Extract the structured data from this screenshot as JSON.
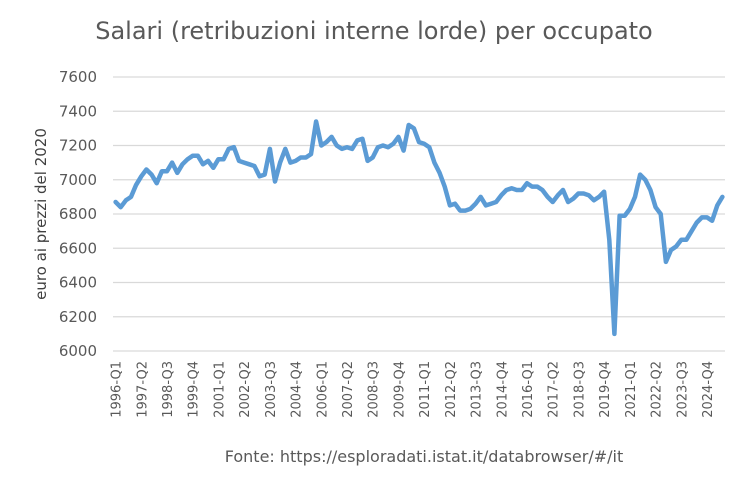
{
  "chart_data": {
    "type": "line",
    "title": "Salari (retribuzioni interne lorde) per occupato",
    "xlabel": "",
    "ylabel": "euro ai prezzi del 2020",
    "ylim": [
      6000,
      7600
    ],
    "yticks": [
      6000,
      6200,
      6400,
      6600,
      6800,
      7000,
      7200,
      7400,
      7600
    ],
    "grid": true,
    "legend": "none",
    "x_tick_labels": [
      "1996-Q1",
      "1997-Q2",
      "1998-Q3",
      "1999-Q4",
      "2001-Q1",
      "2002-Q2",
      "2003-Q3",
      "2004-Q4",
      "2006-Q1",
      "2007-Q2",
      "2008-Q3",
      "2009-Q4",
      "2011-Q1",
      "2012-Q2",
      "2013-Q3",
      "2014-Q4",
      "2016-Q1",
      "2017-Q2",
      "2018-Q3",
      "2019-Q4",
      "2021-Q1",
      "2022-Q2",
      "2023-Q3",
      "2024-Q4"
    ],
    "series": [
      {
        "name": "Salari per occupato",
        "color": "#5B9BD5",
        "start": "1996-Q1",
        "values": [
          6870,
          6840,
          6880,
          6900,
          6970,
          7020,
          7060,
          7030,
          6980,
          7050,
          7050,
          7100,
          7040,
          7090,
          7120,
          7140,
          7140,
          7090,
          7110,
          7070,
          7120,
          7120,
          7180,
          7190,
          7110,
          7100,
          7090,
          7080,
          7020,
          7030,
          7180,
          6990,
          7100,
          7180,
          7100,
          7110,
          7130,
          7130,
          7150,
          7340,
          7200,
          7220,
          7250,
          7200,
          7180,
          7190,
          7180,
          7230,
          7240,
          7110,
          7130,
          7190,
          7200,
          7190,
          7210,
          7250,
          7170,
          7320,
          7300,
          7220,
          7210,
          7190,
          7100,
          7040,
          6960,
          6850,
          6860,
          6820,
          6820,
          6830,
          6860,
          6900,
          6850,
          6860,
          6870,
          6910,
          6940,
          6950,
          6940,
          6940,
          6980,
          6960,
          6960,
          6940,
          6900,
          6870,
          6910,
          6940,
          6870,
          6890,
          6920,
          6920,
          6910,
          6880,
          6900,
          6930,
          6650,
          6100,
          6790,
          6790,
          6830,
          6900,
          7030,
          7000,
          6940,
          6840,
          6800,
          6520,
          6590,
          6610,
          6650,
          6650,
          6700,
          6750,
          6780,
          6780,
          6760,
          6850,
          6900
        ]
      }
    ],
    "source": "Fonte: https://esploradati.istat.it/databrowser/#/it"
  },
  "page": {
    "title": "Salari (retribuzioni interne lorde) per occupato",
    "ylabel": "euro ai prezzi del 2020",
    "source": "Fonte: https://esploradati.istat.it/databrowser/#/it"
  },
  "colors": {
    "line": "#5B9BD5",
    "grid": "#D9D9D9",
    "text": "#595959"
  }
}
